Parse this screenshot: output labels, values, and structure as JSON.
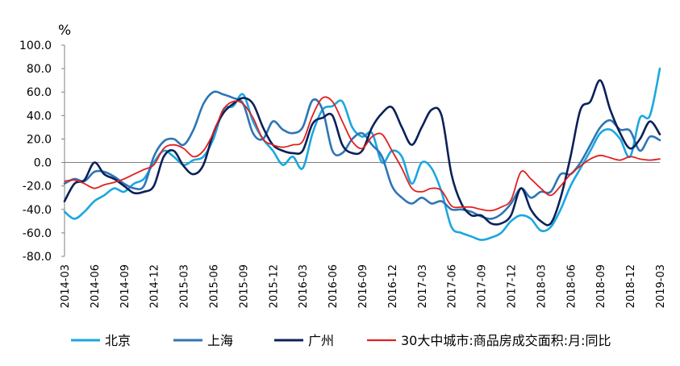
{
  "chart_data": {
    "type": "line",
    "unit_label": "%",
    "ylim": [
      -80,
      100
    ],
    "y_ticks": [
      "100.0",
      "80.0",
      "60.0",
      "40.0",
      "20.0",
      "0.0",
      "-20.0",
      "-40.0",
      "-60.0",
      "-80.0"
    ],
    "x": [
      "2014-03",
      "2014-04",
      "2014-05",
      "2014-06",
      "2014-07",
      "2014-08",
      "2014-09",
      "2014-10",
      "2014-11",
      "2014-12",
      "2015-01",
      "2015-02",
      "2015-03",
      "2015-04",
      "2015-05",
      "2015-06",
      "2015-07",
      "2015-08",
      "2015-09",
      "2015-10",
      "2015-11",
      "2015-12",
      "2016-01",
      "2016-02",
      "2016-03",
      "2016-04",
      "2016-05",
      "2016-06",
      "2016-07",
      "2016-08",
      "2016-09",
      "2016-10",
      "2016-11",
      "2016-12",
      "2017-01",
      "2017-02",
      "2017-03",
      "2017-04",
      "2017-05",
      "2017-06",
      "2017-07",
      "2017-08",
      "2017-09",
      "2017-10",
      "2017-11",
      "2017-12",
      "2018-01",
      "2018-02",
      "2018-03",
      "2018-04",
      "2018-05",
      "2018-06",
      "2018-07",
      "2018-08",
      "2018-09",
      "2018-10",
      "2018-11",
      "2018-12",
      "2019-01",
      "2019-02",
      "2019-03"
    ],
    "x_tick_labels": [
      "2014-03",
      "2014-06",
      "2014-09",
      "2014-12",
      "2015-03",
      "2015-06",
      "2015-09",
      "2015-12",
      "2016-03",
      "2016-06",
      "2016-09",
      "2016-12",
      "2017-03",
      "2017-06",
      "2017-09",
      "2017-12",
      "2018-03",
      "2018-06",
      "2018-09",
      "2018-12",
      "2019-03"
    ],
    "grid": false,
    "legend_position": "bottom",
    "series": [
      {
        "name": "北京",
        "color": "#1aa7e0",
        "width": 2.6,
        "values": [
          -42,
          -48,
          -42,
          -33,
          -28,
          -22,
          -25,
          -18,
          -14,
          0,
          10,
          5,
          -2,
          2,
          5,
          20,
          45,
          48,
          58,
          35,
          20,
          10,
          -2,
          5,
          -5,
          25,
          45,
          48,
          52,
          30,
          22,
          25,
          0,
          10,
          5,
          -18,
          0,
          -5,
          -25,
          -55,
          -60,
          -63,
          -66,
          -64,
          -60,
          -50,
          -45,
          -48,
          -58,
          -55,
          -40,
          -20,
          -5,
          10,
          25,
          28,
          20,
          5,
          38,
          40,
          80
        ]
      },
      {
        "name": "上海",
        "color": "#2e75b6",
        "width": 2.6,
        "values": [
          -18,
          -14,
          -16,
          -8,
          -8,
          -12,
          -18,
          -22,
          -20,
          5,
          18,
          20,
          15,
          28,
          50,
          60,
          58,
          55,
          50,
          25,
          20,
          35,
          28,
          25,
          30,
          53,
          45,
          10,
          8,
          20,
          25,
          15,
          5,
          -20,
          -30,
          -35,
          -30,
          -35,
          -33,
          -40,
          -40,
          -42,
          -46,
          -48,
          -44,
          -35,
          -22,
          -30,
          -25,
          -25,
          -10,
          -10,
          0,
          15,
          30,
          36,
          28,
          27,
          10,
          22,
          19
        ]
      },
      {
        "name": "广州",
        "color": "#0b2158",
        "width": 2.6,
        "values": [
          -33,
          -18,
          -15,
          0,
          -10,
          -14,
          -20,
          -26,
          -25,
          -20,
          5,
          10,
          -3,
          -10,
          -2,
          25,
          42,
          50,
          55,
          50,
          30,
          15,
          10,
          8,
          10,
          33,
          38,
          40,
          15,
          8,
          10,
          30,
          42,
          47,
          30,
          15,
          30,
          45,
          40,
          -10,
          -35,
          -45,
          -45,
          -52,
          -52,
          -45,
          -22,
          -40,
          -50,
          -52,
          -30,
          5,
          45,
          52,
          70,
          45,
          25,
          12,
          20,
          35,
          24
        ]
      },
      {
        "name": "30大中城市:商品房成交面积:月:同比",
        "color": "#e02020",
        "width": 1.8,
        "values": [
          -16,
          -15,
          -18,
          -22,
          -19,
          -17,
          -14,
          -10,
          -6,
          -2,
          12,
          15,
          12,
          5,
          10,
          25,
          45,
          52,
          50,
          38,
          20,
          15,
          13,
          15,
          18,
          40,
          55,
          52,
          35,
          18,
          12,
          22,
          24,
          10,
          -5,
          -22,
          -25,
          -22,
          -24,
          -37,
          -38,
          -38,
          -40,
          -41,
          -38,
          -32,
          -8,
          -14,
          -22,
          -28,
          -20,
          -10,
          -3,
          3,
          6,
          4,
          2,
          5,
          3,
          2,
          3
        ]
      }
    ]
  }
}
